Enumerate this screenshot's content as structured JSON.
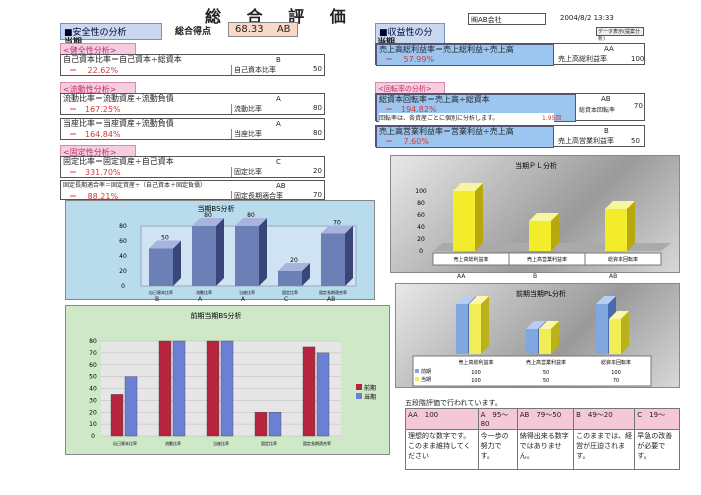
{
  "header": {
    "title": "総 合 評 価",
    "total_label": "総合得点",
    "total_score": "68.33",
    "total_grade": "AB",
    "company": "㈱AB会社",
    "date": "2004/8/2 13:33",
    "data_button": "データ表示(提案分析)"
  },
  "left": {
    "section_title": "■安全性の分析",
    "period": "当期",
    "blocks": [
      {
        "sub": "<健全性分析>",
        "formula": "自己資本比率＝自己資本÷総資本",
        "value": "＝　 22.62%",
        "grade": "B",
        "metric": "自己資本比率",
        "score": "50"
      },
      {
        "sub": "<流動性分析>",
        "formula": "流動比率＝流動資産÷流動負債",
        "value": "＝　167.25%",
        "grade": "A",
        "metric": "流動比率",
        "score": "80"
      },
      {
        "sub": "",
        "formula": "当座比率＝当座資産÷流動負債",
        "value": "＝　164.84%",
        "grade": "A",
        "metric": "当座比率",
        "score": "80"
      },
      {
        "sub": "<固定性分析>",
        "formula": "固定比率＝固定資産÷自己資本",
        "value": "＝　331.70%",
        "grade": "C",
        "metric": "固定比率",
        "score": "20"
      },
      {
        "sub": "",
        "formula": "固定長期適合率＝固定資産÷（自己資本＋固定負債）",
        "value": "＝　 88.21%",
        "grade": "AB",
        "metric": "固定長期適合率",
        "score": "70"
      }
    ]
  },
  "right": {
    "section_title": "■収益性の分析",
    "period": "当期",
    "blocks": [
      {
        "sub": "",
        "formula": "売上高総利益率＝売上総利益÷売上高",
        "value": "＝　 57.99%",
        "grade": "AA",
        "metric": "売上高総利益率",
        "score": "100"
      },
      {
        "sub": "<回転率の分析>",
        "formula": "総資本回転率＝売上高÷総資本",
        "value": "＝　194.82%",
        "note": "回転率は、各資産ごとに個別に分析します。",
        "note2": "1.95回",
        "grade": "AB",
        "metric": "総資本回転率",
        "score": "70"
      },
      {
        "sub": "",
        "formula": "売上高営業利益率＝営業利益÷売上高",
        "value": "＝　 7.60%",
        "grade": "B",
        "metric": "売上高営業利益率",
        "score": "50"
      }
    ]
  },
  "bs_chart": {
    "chart_data": {
      "type": "bar",
      "title": "当期BS分析",
      "categories": [
        "自己資本比率",
        "流動比率",
        "当座比率",
        "固定比率",
        "固定長期適合率"
      ],
      "values": [
        50,
        80,
        80,
        20,
        70
      ],
      "grades": [
        "B",
        "A",
        "A",
        "C",
        "AB"
      ],
      "ylim": [
        0,
        80
      ],
      "yticks": [
        "0",
        "20",
        "40",
        "60",
        "80"
      ]
    }
  },
  "pl_chart": {
    "chart_data": {
      "type": "bar",
      "title": "当期ＰＬ分析",
      "categories": [
        "売上高総利益率",
        "売上高営業利益率",
        "総資本回転率"
      ],
      "values": [
        100,
        50,
        70
      ],
      "grades": [
        "AA",
        "B",
        "AB"
      ],
      "ylim": [
        0,
        100
      ],
      "yticks": [
        "0",
        "20",
        "40",
        "60",
        "80",
        "100"
      ]
    }
  },
  "prev_bs_chart": {
    "chart_data": {
      "type": "bar",
      "title": "前期当期BS分析",
      "categories": [
        "自己資本比率",
        "流動比率",
        "当座比率",
        "固定比率",
        "固定長期適合率"
      ],
      "series": [
        {
          "name": "前期",
          "values": [
            35,
            80,
            80,
            20,
            75
          ]
        },
        {
          "name": "当期",
          "values": [
            50,
            80,
            80,
            20,
            70
          ]
        }
      ],
      "ylim": [
        0,
        80
      ],
      "yticks": [
        "0",
        "10",
        "20",
        "30",
        "40",
        "50",
        "60",
        "70",
        "80"
      ],
      "colors": [
        "#b5253d",
        "#6a7fd6"
      ]
    }
  },
  "prev_pl_chart": {
    "chart_data": {
      "type": "bar",
      "title": "前期当期PL分析",
      "categories": [
        "売上高総利益率",
        "売上高営業利益率",
        "総資本回転率"
      ],
      "series": [
        {
          "name": "前期",
          "values": [
            100,
            50,
            100
          ]
        },
        {
          "name": "当期",
          "values": [
            100,
            50,
            70
          ]
        }
      ],
      "ylim": [
        0,
        100
      ],
      "colors": [
        "#7fa7e0",
        "#f1ee55"
      ]
    }
  },
  "grading": {
    "title": "五段階評価で行われています。",
    "headers": [
      "AA　100",
      "A　95〜80",
      "AB　79〜50",
      "B　49〜20",
      "C　19〜"
    ],
    "texts": [
      "理想的な数字です。このまま維持してください",
      "今一歩の努力です。",
      "納得出来る数字ではありません。",
      "このままでは、経営が圧迫されます。",
      "早急の改善が必要です。"
    ]
  }
}
